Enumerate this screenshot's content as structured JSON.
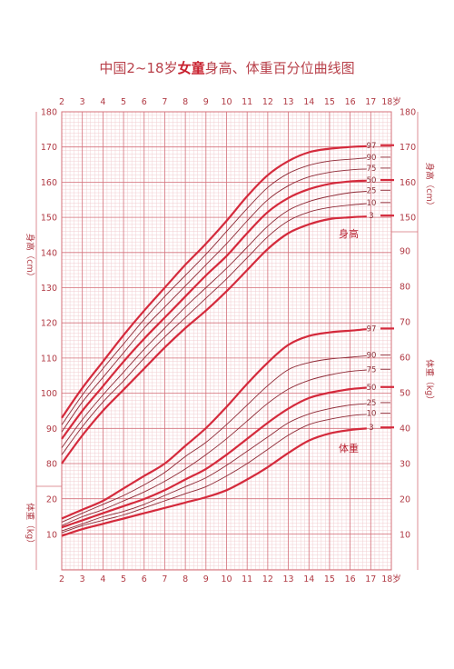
{
  "chart_data": {
    "type": "line",
    "title_prefix": "中国2~18岁",
    "title_bold": "女童",
    "title_suffix": "身高、体重百分位曲线图",
    "age_ticks": [
      "2",
      "3",
      "4",
      "5",
      "6",
      "7",
      "8",
      "9",
      "10",
      "11",
      "12",
      "13",
      "14",
      "15",
      "16",
      "17",
      "18岁"
    ],
    "x_range": [
      2,
      18
    ],
    "height": {
      "label_left": "身高（cm）",
      "label_right": "身高（cm）",
      "ticks_left": [
        "80",
        "90",
        "100",
        "110",
        "120",
        "130",
        "140",
        "150",
        "160",
        "170",
        "180"
      ],
      "ticks_right": [
        "150",
        "160",
        "170",
        "180"
      ],
      "y_range": [
        75,
        180
      ],
      "group_label": "身高",
      "ages": [
        2,
        3,
        4,
        5,
        6,
        7,
        8,
        9,
        10,
        11,
        12,
        13,
        14,
        15,
        16,
        17,
        18
      ],
      "series": [
        {
          "name": "3",
          "values": [
            80.0,
            88.0,
            95.0,
            101.0,
            107.0,
            113.0,
            118.5,
            123.5,
            129.0,
            135.0,
            141.0,
            145.5,
            148.0,
            149.5,
            150.0,
            150.3,
            150.5
          ]
        },
        {
          "name": "10",
          "values": [
            82.5,
            90.5,
            97.5,
            103.5,
            110.0,
            116.0,
            121.5,
            127.0,
            132.5,
            138.5,
            144.5,
            149.0,
            151.5,
            152.8,
            153.5,
            154.0,
            154.2
          ]
        },
        {
          "name": "25",
          "values": [
            84.5,
            92.5,
            99.5,
            106.0,
            112.5,
            118.5,
            124.5,
            130.0,
            135.5,
            141.5,
            147.5,
            152.0,
            154.5,
            156.0,
            157.0,
            157.5,
            157.7
          ]
        },
        {
          "name": "50",
          "values": [
            87.0,
            95.0,
            102.0,
            109.0,
            115.5,
            121.5,
            127.5,
            133.5,
            139.0,
            145.5,
            151.5,
            155.5,
            158.0,
            159.5,
            160.2,
            160.5,
            160.6
          ]
        },
        {
          "name": "75",
          "values": [
            89.0,
            97.5,
            104.5,
            111.5,
            118.5,
            124.5,
            130.5,
            136.5,
            142.5,
            149.0,
            155.0,
            159.0,
            161.5,
            162.8,
            163.5,
            163.8,
            164.0
          ]
        },
        {
          "name": "90",
          "values": [
            91.0,
            99.5,
            107.0,
            114.0,
            121.0,
            127.5,
            133.5,
            139.5,
            146.0,
            152.5,
            158.5,
            162.5,
            164.8,
            166.0,
            166.5,
            167.0,
            167.1
          ]
        },
        {
          "name": "97",
          "values": [
            93.0,
            101.5,
            109.0,
            116.5,
            123.5,
            130.0,
            136.5,
            142.5,
            149.0,
            156.0,
            162.0,
            166.0,
            168.5,
            169.5,
            170.0,
            170.3,
            170.5
          ]
        }
      ]
    },
    "weight": {
      "label_left": "体重（kg）",
      "label_right": "体重（kg）",
      "ticks_left": [
        "10",
        "20"
      ],
      "ticks_right": [
        "10",
        "20",
        "30",
        "40",
        "50",
        "60",
        "70",
        "80",
        "90"
      ],
      "y_range": [
        0,
        90
      ],
      "group_label": "体重",
      "ages": [
        2,
        3,
        4,
        5,
        6,
        7,
        8,
        9,
        10,
        11,
        12,
        13,
        14,
        15,
        16,
        17,
        18
      ],
      "series": [
        {
          "name": "3",
          "values": [
            9.6,
            11.5,
            13.0,
            14.5,
            16.0,
            17.5,
            19.0,
            20.5,
            22.5,
            25.5,
            29.0,
            33.0,
            36.5,
            38.5,
            39.5,
            40.0,
            40.2
          ]
        },
        {
          "name": "10",
          "values": [
            10.5,
            12.5,
            14.0,
            15.5,
            17.5,
            19.5,
            21.5,
            23.5,
            26.5,
            30.0,
            34.0,
            38.0,
            41.0,
            42.5,
            43.5,
            44.0,
            44.2
          ]
        },
        {
          "name": "25",
          "values": [
            11.0,
            13.0,
            15.0,
            16.5,
            18.5,
            21.0,
            23.5,
            26.0,
            29.5,
            33.5,
            37.5,
            41.5,
            44.0,
            45.5,
            46.5,
            47.0,
            47.2
          ]
        },
        {
          "name": "50",
          "values": [
            12.0,
            14.0,
            16.0,
            18.0,
            20.0,
            22.5,
            25.5,
            28.5,
            32.5,
            37.0,
            41.5,
            45.5,
            48.5,
            50.0,
            51.0,
            51.5,
            51.6
          ]
        },
        {
          "name": "75",
          "values": [
            12.5,
            15.0,
            17.0,
            19.5,
            22.0,
            25.0,
            28.5,
            32.5,
            37.0,
            42.0,
            47.0,
            51.0,
            53.5,
            55.0,
            56.0,
            56.5,
            56.6
          ]
        },
        {
          "name": "90",
          "values": [
            13.5,
            16.0,
            18.5,
            21.0,
            24.0,
            27.5,
            32.0,
            36.0,
            41.0,
            46.5,
            52.0,
            56.5,
            58.5,
            59.5,
            60.0,
            60.5,
            60.6
          ]
        },
        {
          "name": "97",
          "values": [
            14.5,
            17.0,
            19.5,
            23.0,
            26.5,
            30.0,
            35.0,
            40.0,
            46.0,
            52.5,
            58.5,
            63.5,
            66.0,
            67.0,
            67.5,
            68.0,
            68.1
          ]
        }
      ]
    },
    "colors": {
      "thick_line": "#d42a3c",
      "thin_line": "#8e2a36",
      "grid_major": "#d4707a",
      "grid_minor": "#f2cdd0",
      "axis_text": "#b03a44"
    }
  }
}
